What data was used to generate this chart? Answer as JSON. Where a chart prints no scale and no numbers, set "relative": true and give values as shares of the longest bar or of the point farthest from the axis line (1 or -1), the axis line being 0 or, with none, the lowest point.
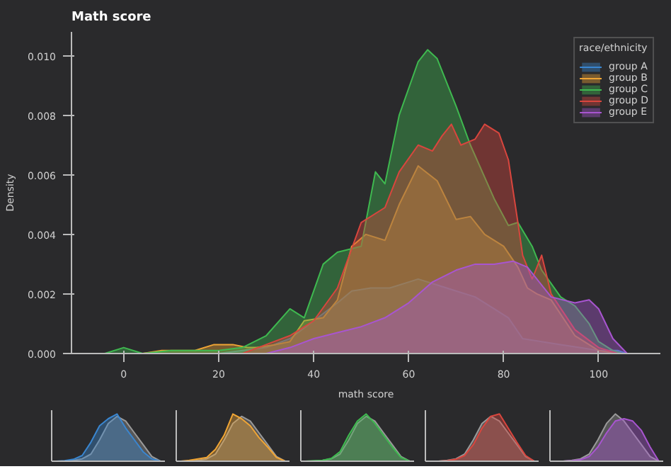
{
  "chart_data": [
    {
      "type": "area",
      "title": "Math score",
      "xlabel": "math score",
      "ylabel": "Density",
      "legend_title": "race/ethnicity",
      "legend": "top right",
      "grid": false,
      "xlim": [
        -11,
        113
      ],
      "ylim": [
        0,
        0.0108
      ],
      "xticks": [
        0,
        20,
        40,
        60,
        80,
        100
      ],
      "yticks": [
        {
          "value": 0,
          "label": "0.000"
        },
        {
          "value": 0.002,
          "label": "0.002"
        },
        {
          "value": 0.004,
          "label": "0.004"
        },
        {
          "value": 0.006,
          "label": "0.006"
        },
        {
          "value": 0.008,
          "label": "0.008"
        },
        {
          "value": 0.01,
          "label": "0.010"
        }
      ],
      "series": [
        {
          "name": "group A",
          "color": "#3a86d0",
          "x": [
            20,
            30,
            35,
            40,
            45,
            48,
            52,
            56,
            60,
            62,
            66,
            70,
            74,
            78,
            81,
            84,
            88,
            92,
            96,
            100,
            104,
            106
          ],
          "values": [
            0,
            0.0002,
            0.0005,
            0.0011,
            0.0017,
            0.0021,
            0.0022,
            0.0022,
            0.0024,
            0.0025,
            0.0023,
            0.0021,
            0.0019,
            0.0015,
            0.0012,
            0.0005,
            0.0004,
            0.0003,
            0.0002,
            0.0001,
            0.0001,
            0
          ]
        },
        {
          "name": "group B",
          "color": "#f0a535",
          "x": [
            4,
            8,
            12,
            15,
            19,
            23,
            26,
            28,
            32,
            35,
            38,
            42,
            45,
            48,
            51,
            55,
            58,
            62,
            66,
            70,
            73,
            76,
            80,
            83,
            85,
            87,
            90,
            95,
            100,
            104
          ],
          "values": [
            0,
            0.0001,
            0.0001,
            0.0001,
            0.0003,
            0.0003,
            0.0002,
            0.0002,
            0.0003,
            0.0004,
            0.0011,
            0.0012,
            0.0018,
            0.0036,
            0.004,
            0.0038,
            0.005,
            0.0063,
            0.0058,
            0.0045,
            0.0046,
            0.004,
            0.0036,
            0.0029,
            0.0022,
            0.002,
            0.0018,
            0.0006,
            0.0001,
            0
          ]
        },
        {
          "name": "group C",
          "color": "#3fb950",
          "x": [
            -4,
            0,
            4,
            10,
            20,
            25,
            30,
            35,
            38,
            42,
            45,
            50,
            53,
            55,
            58,
            62,
            64,
            66,
            70,
            73,
            78,
            81,
            83,
            86,
            88,
            92,
            95,
            98,
            100,
            103,
            105
          ],
          "values": [
            0,
            0.0002,
            0,
            0.0001,
            0.0001,
            0.0002,
            0.0006,
            0.0015,
            0.0012,
            0.003,
            0.0034,
            0.0036,
            0.0061,
            0.0057,
            0.008,
            0.0098,
            0.0102,
            0.0099,
            0.0083,
            0.007,
            0.0052,
            0.0043,
            0.0044,
            0.0036,
            0.0028,
            0.0019,
            0.0016,
            0.001,
            0.0004,
            0.0001,
            0
          ]
        },
        {
          "name": "group D",
          "color": "#d9463e",
          "x": [
            25,
            30,
            35,
            40,
            45,
            50,
            55,
            58,
            62,
            65,
            67,
            69,
            71,
            74,
            76,
            79,
            81,
            83,
            84,
            86,
            88,
            90,
            95,
            100,
            104
          ],
          "values": [
            0,
            0.0003,
            0.0006,
            0.0011,
            0.0022,
            0.0044,
            0.0049,
            0.0061,
            0.007,
            0.0068,
            0.0073,
            0.0077,
            0.007,
            0.0072,
            0.0077,
            0.0074,
            0.0065,
            0.0044,
            0.0033,
            0.0025,
            0.0033,
            0.002,
            0.0008,
            0.0002,
            0
          ]
        },
        {
          "name": "group E",
          "color": "#a855d0",
          "x": [
            30,
            35,
            40,
            45,
            50,
            55,
            60,
            65,
            70,
            74,
            78,
            82,
            85,
            90,
            95,
            98,
            100,
            103,
            106
          ],
          "values": [
            0,
            0.0002,
            0.0005,
            0.0007,
            0.0009,
            0.0012,
            0.0017,
            0.0024,
            0.0028,
            0.003,
            0.003,
            0.0031,
            0.0029,
            0.0019,
            0.0017,
            0.0018,
            0.0015,
            0.0005,
            0
          ]
        }
      ]
    },
    {
      "type": "area",
      "relative": true,
      "categories": [
        null,
        null,
        null,
        null,
        null,
        null,
        null,
        null,
        null,
        null,
        null,
        null,
        null
      ],
      "series": [
        {
          "color": "#9a9a9a",
          "values": [
            0,
            0,
            0.02,
            0.05,
            0.15,
            0.45,
            0.8,
            0.95,
            0.85,
            0.6,
            0.35,
            0.1,
            0
          ]
        },
        {
          "color": "#3a86d0",
          "values": [
            0,
            0.01,
            0.04,
            0.12,
            0.4,
            0.75,
            0.9,
            1.0,
            0.7,
            0.45,
            0.2,
            0.05,
            0
          ]
        }
      ]
    },
    {
      "type": "area",
      "relative": true,
      "categories": [
        null,
        null,
        null,
        null,
        null,
        null,
        null,
        null,
        null,
        null,
        null,
        null,
        null
      ],
      "series": [
        {
          "color": "#9a9a9a",
          "values": [
            0,
            0,
            0.02,
            0.05,
            0.15,
            0.45,
            0.8,
            0.95,
            0.85,
            0.6,
            0.35,
            0.1,
            0
          ]
        },
        {
          "color": "#f0a535",
          "values": [
            0,
            0.02,
            0.05,
            0.08,
            0.25,
            0.55,
            1.0,
            0.9,
            0.75,
            0.5,
            0.3,
            0.08,
            0
          ]
        }
      ]
    },
    {
      "type": "area",
      "relative": true,
      "categories": [
        null,
        null,
        null,
        null,
        null,
        null,
        null,
        null,
        null,
        null,
        null,
        null,
        null
      ],
      "series": [
        {
          "color": "#9a9a9a",
          "values": [
            0,
            0,
            0.02,
            0.05,
            0.15,
            0.45,
            0.8,
            0.95,
            0.85,
            0.6,
            0.35,
            0.1,
            0
          ]
        },
        {
          "color": "#3fb950",
          "values": [
            0,
            0.01,
            0.02,
            0.06,
            0.2,
            0.55,
            0.85,
            1.0,
            0.8,
            0.55,
            0.3,
            0.08,
            0
          ]
        }
      ]
    },
    {
      "type": "area",
      "relative": true,
      "categories": [
        null,
        null,
        null,
        null,
        null,
        null,
        null,
        null,
        null,
        null,
        null,
        null,
        null
      ],
      "series": [
        {
          "color": "#9a9a9a",
          "values": [
            0,
            0,
            0.02,
            0.05,
            0.15,
            0.45,
            0.8,
            0.95,
            0.85,
            0.6,
            0.35,
            0.1,
            0
          ]
        },
        {
          "color": "#d9463e",
          "values": [
            0,
            0,
            0.01,
            0.04,
            0.12,
            0.35,
            0.7,
            0.95,
            1.0,
            0.7,
            0.4,
            0.12,
            0
          ]
        }
      ]
    },
    {
      "type": "area",
      "relative": true,
      "categories": [
        null,
        null,
        null,
        null,
        null,
        null,
        null,
        null,
        null,
        null,
        null,
        null,
        null
      ],
      "series": [
        {
          "color": "#9a9a9a",
          "values": [
            0,
            0,
            0.02,
            0.05,
            0.15,
            0.45,
            0.8,
            1.0,
            0.85,
            0.6,
            0.35,
            0.1,
            0
          ]
        },
        {
          "color": "#a855d0",
          "values": [
            0,
            0,
            0.01,
            0.03,
            0.1,
            0.3,
            0.6,
            0.85,
            0.9,
            0.85,
            0.65,
            0.3,
            0
          ]
        }
      ]
    }
  ]
}
